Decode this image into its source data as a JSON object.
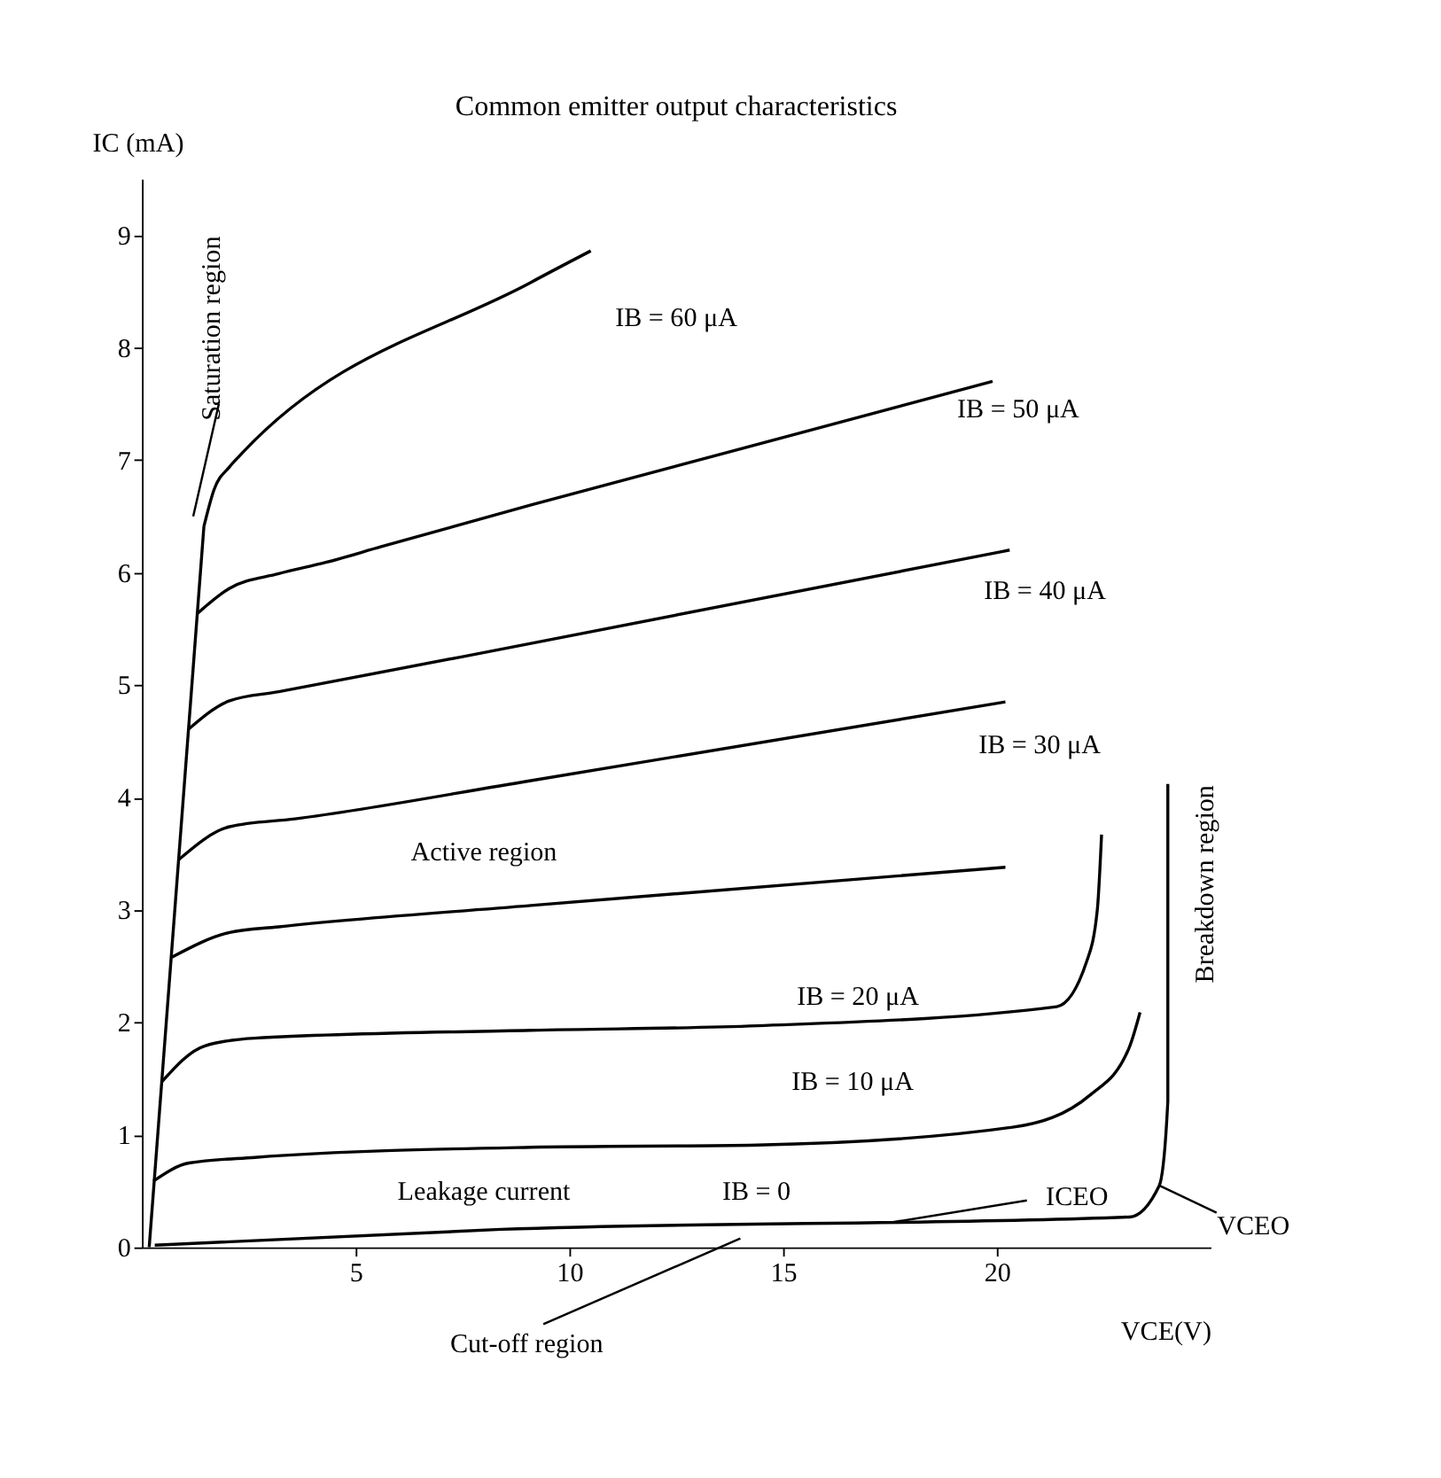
{
  "chart_data": {
    "type": "line",
    "title": "Common emitter output characteristics",
    "xlabel": "VCE(V)",
    "ylabel": "IC (mA)",
    "xlim": [
      0,
      25
    ],
    "ylim": [
      0,
      9.5
    ],
    "xticks": [
      5,
      10,
      15,
      20
    ],
    "yticks": [
      0,
      1,
      2,
      3,
      4,
      5,
      6,
      7,
      8,
      9
    ],
    "grid": false,
    "marker": "none",
    "line_style": "solid",
    "series": [
      {
        "color": "#000000",
        "x": [
          1.45,
          1.69,
          2.05,
          2.29,
          9.1,
          10.5
        ],
        "values": [
          6.41,
          6.74,
          6.94,
          7.04,
          8.58,
          8.86
        ]
      },
      {
        "color": "#000000",
        "x": [
          1.28,
          2.05,
          3.2,
          4.3,
          5.6,
          9.1,
          19.9
        ],
        "values": [
          5.63,
          5.86,
          5.99,
          6.09,
          6.23,
          6.6,
          7.7
        ]
      },
      {
        "color": "#000000",
        "x": [
          1.1,
          2.05,
          3.2,
          9.1,
          20.3
        ],
        "values": [
          4.61,
          4.86,
          4.94,
          5.37,
          6.2
        ]
      },
      {
        "color": "#000000",
        "x": [
          0.87,
          2.05,
          3.58,
          9.1,
          20.2
        ],
        "values": [
          3.45,
          3.74,
          3.81,
          4.15,
          4.85
        ]
      },
      {
        "color": "#000000",
        "x": [
          0.7,
          2.05,
          3.2,
          9.1,
          20.2
        ],
        "values": [
          2.58,
          2.8,
          2.85,
          3.04,
          3.38
        ]
      },
      {
        "color": "#000000",
        "x": [
          0.46,
          1.46,
          2.64,
          9.1,
          14.4,
          21.4,
          22.1,
          22.35,
          22.45
        ],
        "values": [
          1.47,
          1.79,
          1.86,
          1.93,
          1.97,
          2.14,
          2.54,
          3.0,
          3.67
        ]
      },
      {
        "color": "#000000",
        "x": [
          0.27,
          1.1,
          2.64,
          9.1,
          14.4,
          20.4,
          22.2,
          23.1,
          23.35
        ],
        "values": [
          0.59,
          0.75,
          0.8,
          0.89,
          0.91,
          1.07,
          1.36,
          1.78,
          2.09
        ]
      },
      {
        "color": "#000000",
        "x": [
          0.3,
          8.4,
          23.1,
          23.8,
          24.0,
          24.0
        ],
        "values": [
          0.02,
          0.16,
          0.27,
          0.55,
          1.3,
          4.12
        ]
      },
      {
        "color": "#000000",
        "x": [
          0.17,
          1.45
        ],
        "values": [
          0.0,
          6.41
        ]
      }
    ],
    "annotations": [
      "IB = 60 μA",
      "IB = 50 μA",
      "IB = 40 μA",
      "IB = 30 μA",
      "IB = 20 μA",
      "IB = 10 μA",
      "IB = 0",
      {
        "text": "ICEO",
        "x": 17.5,
        "y": 0.22
      },
      "Leakage current",
      "Active region",
      "Saturation region",
      "Breakdown region",
      "Cut-off region",
      {
        "text": "VCEO",
        "x": 23.8,
        "y": 0.55
      }
    ]
  }
}
